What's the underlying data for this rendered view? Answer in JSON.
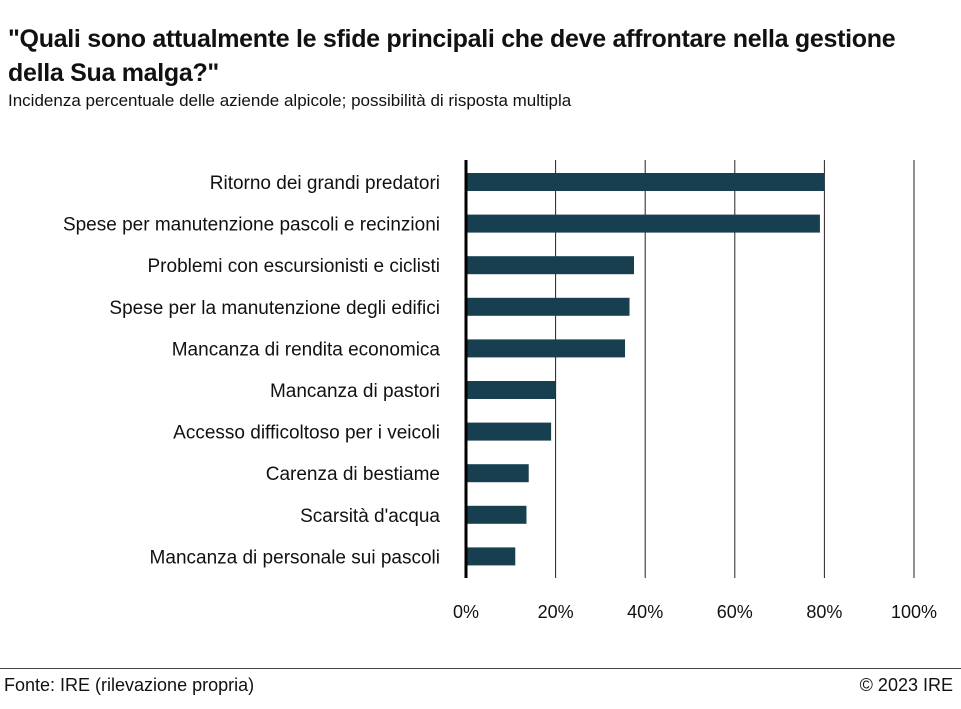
{
  "header": {
    "title": "\"Quali sono attualmente le sfide principali che deve affrontare nella gestione della Sua malga?\"",
    "subtitle": "Incidenza percentuale delle aziende alpicole; possibilità di risposta multipla"
  },
  "footer": {
    "source": "Fonte: IRE (rilevazione propria)",
    "copyright": "© 2023 IRE"
  },
  "colors": {
    "bar": "#173f4f",
    "grid": "#222222",
    "text": "#111111"
  },
  "chart_data": {
    "type": "bar",
    "orientation": "horizontal",
    "categories": [
      "Ritorno dei grandi predatori",
      "Spese per manutenzione pascoli e recinzioni",
      "Problemi con escursionisti e ciclisti",
      "Spese per la manutenzione degli edifici",
      "Mancanza di rendita economica",
      "Mancanza di pastori",
      "Accesso difficoltoso per i veicoli",
      "Carenza di bestiame",
      "Scarsità d'acqua",
      "Mancanza di personale sui pascoli"
    ],
    "values": [
      80,
      79,
      37.5,
      36.5,
      35.5,
      20,
      19,
      14,
      13.5,
      11
    ],
    "xlim": [
      0,
      100
    ],
    "xticks": [
      0,
      20,
      40,
      60,
      80,
      100
    ],
    "xtick_labels": [
      "0%",
      "20%",
      "40%",
      "60%",
      "80%",
      "100%"
    ],
    "grid": "vertical",
    "legend": "none"
  }
}
